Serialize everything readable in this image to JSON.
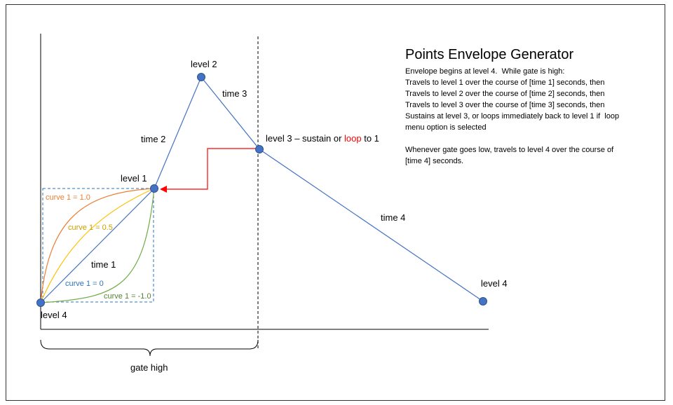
{
  "title": "Points Envelope Generator",
  "description": {
    "lines1": [
      "Envelope begins at level 4.  While gate is high:",
      "Travels to level 1 over the course of [time 1] seconds, then",
      "Travels to level 2 over the course of [time 2] seconds, then",
      "Travels to level 3 over the course of [time 3] seconds, then",
      "Sustains at level 3, or loops immediately back to level 1 if  loop",
      "menu option is selected"
    ],
    "lines2": [
      "Whenever gate goes low, travels to level 4 over the course of",
      "[time 4] seconds."
    ]
  },
  "points": {
    "level4_start": "level 4",
    "level1": "level 1",
    "level2": "level 2",
    "level3_prefix": "level 3 – sustain or ",
    "level3_loop": "loop",
    "level3_suffix": " to 1",
    "level4_end": "level 4"
  },
  "segments": {
    "time1": "time 1",
    "time2": "time 2",
    "time3": "time 3",
    "time4": "time 4"
  },
  "curves": {
    "c1": "curve 1 = 1.0",
    "c05": "curve 1 = 0.5",
    "c0": "curve 1 = 0",
    "cm1": "curve 1 = -1.0"
  },
  "gate": "gate high",
  "colors": {
    "line": "#4472c4",
    "point": "#4472c4",
    "curve_1_0": "#ed7d31",
    "curve_0_5": "#ffc000",
    "curve_0": "#2e75b6",
    "curve_neg_1_0": "#70ad47",
    "loop": "#ff0000",
    "loop_arrow": "#ff0000"
  }
}
